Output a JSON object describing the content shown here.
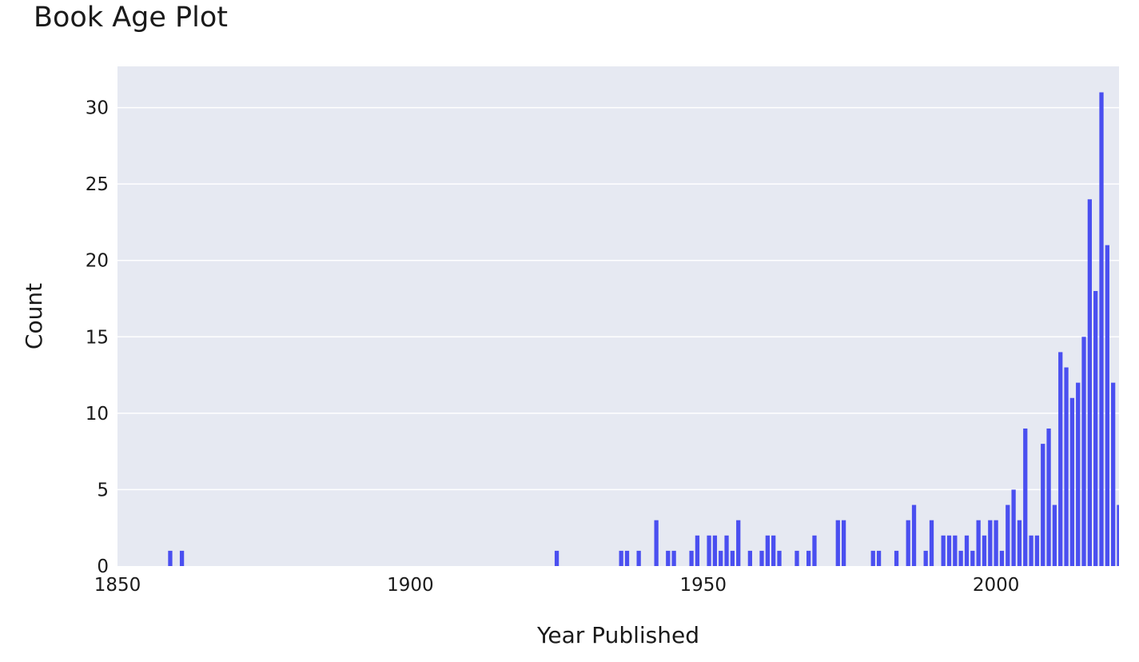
{
  "chart_data": {
    "type": "bar",
    "title": "Book Age Plot",
    "xlabel": "Year Published",
    "ylabel": "Count",
    "xlim": [
      1850,
      2021
    ],
    "ylim": [
      0,
      32.7
    ],
    "xticks": [
      1850,
      1900,
      1950,
      2000
    ],
    "yticks": [
      0,
      5,
      10,
      15,
      20,
      25,
      30
    ],
    "grid": true,
    "colors": {
      "bar": "#4a4ff0",
      "plot_bg": "#e6e9f2",
      "grid": "#ffffff"
    },
    "series": [
      {
        "x": [
          1859,
          1861,
          1925,
          1936,
          1937,
          1939,
          1942,
          1944,
          1945,
          1948,
          1949,
          1951,
          1952,
          1953,
          1954,
          1955,
          1956,
          1958,
          1960,
          1961,
          1962,
          1963,
          1966,
          1968,
          1969,
          1973,
          1974,
          1979,
          1980,
          1983,
          1985,
          1986,
          1988,
          1989,
          1991,
          1992,
          1993,
          1994,
          1995,
          1996,
          1997,
          1998,
          1999,
          2000,
          2001,
          2002,
          2003,
          2004,
          2005,
          2006,
          2007,
          2008,
          2009,
          2010,
          2011,
          2012,
          2013,
          2014,
          2015,
          2016,
          2017,
          2018,
          2019,
          2020,
          2021
        ],
        "values": [
          1,
          1,
          1,
          1,
          1,
          1,
          3,
          1,
          1,
          1,
          2,
          2,
          2,
          1,
          2,
          1,
          3,
          1,
          1,
          2,
          2,
          1,
          1,
          1,
          2,
          3,
          3,
          1,
          1,
          1,
          3,
          4,
          1,
          3,
          2,
          2,
          2,
          1,
          2,
          1,
          3,
          2,
          3,
          3,
          1,
          4,
          5,
          3,
          9,
          2,
          2,
          8,
          9,
          4,
          14,
          13,
          11,
          12,
          15,
          24,
          18,
          31,
          21,
          12,
          4
        ]
      }
    ]
  }
}
